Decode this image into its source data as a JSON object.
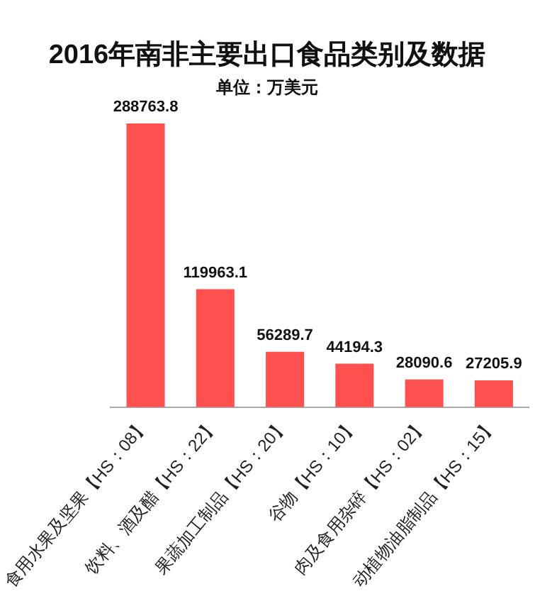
{
  "chart_data": {
    "type": "bar",
    "title": "2016年南非主要出口食品类别及数据",
    "subtitle": "单位：万美元",
    "categories": [
      "食用水果及坚果【HS：08】",
      "饮料、酒及醋【HS：22】",
      "果蔬加工制品【HS：20】",
      "谷物【HS：10】",
      "肉及食用杂碎【HS：02】",
      "动植物油脂制品【HS：15】"
    ],
    "values": [
      288763.8,
      119963.1,
      56289.7,
      44194.3,
      28090.6,
      27205.9
    ],
    "color": "#ff5050",
    "tick_labels": "x",
    "data_labels": true,
    "grid": false,
    "legend": false
  }
}
